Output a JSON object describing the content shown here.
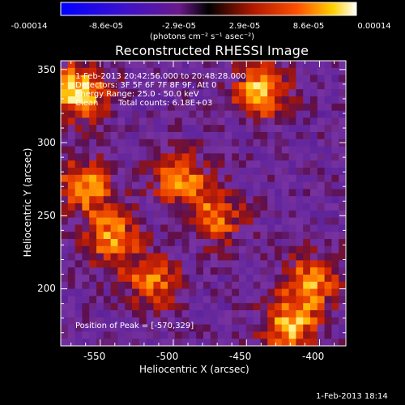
{
  "colorbar": {
    "tick_labels": [
      "-0.00014",
      "-8.6e-05",
      "-2.9e-05",
      "2.9e-05",
      "8.6e-05",
      "0.00014"
    ],
    "tick_values": [
      -0.00014,
      -8.6e-05,
      -2.9e-05,
      2.9e-05,
      8.6e-05,
      0.00014
    ],
    "units_label": "(photons cm⁻² s⁻¹ asec⁻²)",
    "colors": [
      "#0000ff",
      "#7a1a8a",
      "#000000",
      "#d23000",
      "#ff8a00",
      "#ffffff"
    ]
  },
  "chart_data": {
    "type": "heatmap",
    "title": "Reconstructed RHESSI Image",
    "xlabel": "Heliocentric X (arcsec)",
    "ylabel": "Heliocentric Y (arcsec)",
    "xlim": [
      -577,
      -382
    ],
    "ylim": [
      161,
      356
    ],
    "x_ticks": [
      -550,
      -500,
      -450,
      -400
    ],
    "y_ticks": [
      200,
      250,
      300,
      350
    ],
    "annotations": {
      "time_range": "1-Feb-2013 20:42:56.000 to 20:48:28.000",
      "detectors": "Detectors: 3F 5F 6F 7F 8F 9F, Att 0",
      "energy": "Energy Range: 25.0 - 50.0 keV",
      "clean": "Clean",
      "total_counts": "Total counts: 6.18E+03",
      "peak": "Position of Peak = [-570,329]"
    },
    "peak_position": [
      -570,
      329
    ],
    "features": [
      {
        "x": -565,
        "y": 335,
        "intensity": 1.0
      },
      {
        "x": -560,
        "y": 270,
        "intensity": 0.8
      },
      {
        "x": -542,
        "y": 235,
        "intensity": 0.75
      },
      {
        "x": -515,
        "y": 205,
        "intensity": 0.7
      },
      {
        "x": -495,
        "y": 275,
        "intensity": 0.7
      },
      {
        "x": -470,
        "y": 250,
        "intensity": 0.65
      },
      {
        "x": -440,
        "y": 335,
        "intensity": 0.85
      },
      {
        "x": -405,
        "y": 205,
        "intensity": 0.7
      },
      {
        "x": -420,
        "y": 175,
        "intensity": 0.85
      }
    ]
  },
  "footer": {
    "timestamp": "1-Feb-2013 18:14"
  }
}
